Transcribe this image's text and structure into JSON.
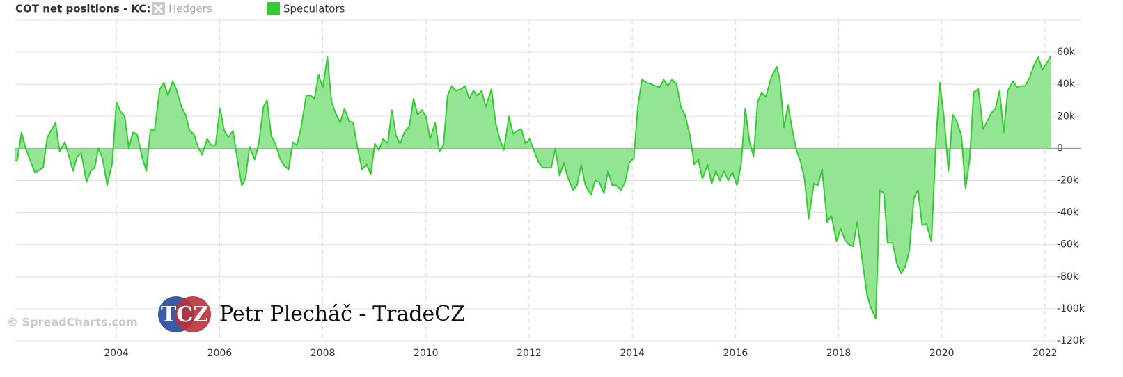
{
  "chart_data": {
    "type": "area",
    "title": "COT net positions - KC:",
    "legend": [
      {
        "name": "Hedgers",
        "color": "#bbbbbb",
        "visible": false
      },
      {
        "name": "Speculators",
        "color": "#33cc33",
        "visible": true
      }
    ],
    "watermarks": [
      "© SpreadCharts.com",
      "TCZ",
      "Petr Plecháč - TradeCZ"
    ],
    "x": [
      2002.04,
      2002.08,
      2002.16,
      2002.24,
      2002.42,
      2002.58,
      2002.66,
      2002.82,
      2002.9,
      2003.0,
      2003.16,
      2003.24,
      2003.32,
      2003.42,
      2003.5,
      2003.58,
      2003.65,
      2003.73,
      2003.82,
      2003.92,
      2004.0,
      2004.08,
      2004.16,
      2004.24,
      2004.32,
      2004.4,
      2004.5,
      2004.58,
      2004.66,
      2004.74,
      2004.84,
      2004.92,
      2005.0,
      2005.09,
      2005.16,
      2005.26,
      2005.34,
      2005.42,
      2005.5,
      2005.58,
      2005.66,
      2005.76,
      2005.84,
      2005.92,
      2006.01,
      2006.09,
      2006.17,
      2006.26,
      2006.35,
      2006.43,
      2006.5,
      2006.58,
      2006.68,
      2006.76,
      2006.85,
      2006.92,
      2007.0,
      2007.08,
      2007.18,
      2007.26,
      2007.34,
      2007.42,
      2007.5,
      2007.58,
      2007.68,
      2007.76,
      2007.84,
      2007.92,
      2008.0,
      2008.09,
      2008.17,
      2008.25,
      2008.34,
      2008.42,
      2008.51,
      2008.59,
      2008.67,
      2008.76,
      2008.85,
      2008.93,
      2009.01,
      2009.09,
      2009.17,
      2009.26,
      2009.34,
      2009.42,
      2009.5,
      2009.58,
      2009.68,
      2009.76,
      2009.84,
      2009.92,
      2010.0,
      2010.08,
      2010.18,
      2010.26,
      2010.34,
      2010.42,
      2010.5,
      2010.58,
      2010.68,
      2010.76,
      2010.84,
      2010.92,
      2011.0,
      2011.08,
      2011.16,
      2011.27,
      2011.35,
      2011.43,
      2011.51,
      2011.61,
      2011.69,
      2011.77,
      2011.85,
      2011.93,
      2012.01,
      2012.09,
      2012.19,
      2012.27,
      2012.35,
      2012.43,
      2012.51,
      2012.59,
      2012.67,
      2012.75,
      2012.85,
      2012.93,
      2013.01,
      2013.09,
      2013.2,
      2013.28,
      2013.36,
      2013.45,
      2013.53,
      2013.61,
      2013.69,
      2013.78,
      2013.86,
      2013.94,
      2014.03,
      2014.11,
      2014.19,
      2014.28,
      2014.37,
      2014.45,
      2014.53,
      2014.61,
      2014.69,
      2014.77,
      2014.86,
      2014.94,
      2015.02,
      2015.12,
      2015.2,
      2015.28,
      2015.36,
      2015.46,
      2015.54,
      2015.62,
      2015.7,
      2015.78,
      2015.86,
      2015.94,
      2016.03,
      2016.11,
      2016.19,
      2016.27,
      2016.35,
      2016.43,
      2016.51,
      2016.59,
      2016.69,
      2016.8,
      2016.86,
      2016.94,
      2017.02,
      2017.1,
      2017.18,
      2017.26,
      2017.34,
      2017.42,
      2017.52,
      2017.6,
      2017.68,
      2017.78,
      2017.86,
      2017.96,
      2018.04,
      2018.12,
      2018.2,
      2018.28,
      2018.36,
      2018.46,
      2018.55,
      2018.62,
      2018.72,
      2018.8,
      2018.88,
      2018.95,
      2019.05,
      2019.13,
      2019.21,
      2019.29,
      2019.37,
      2019.46,
      2019.54,
      2019.62,
      2019.7,
      2019.8,
      2019.88,
      2019.96,
      2020.04,
      2020.13,
      2020.21,
      2020.29,
      2020.38,
      2020.46,
      2020.54,
      2020.62,
      2020.71,
      2020.8,
      2020.88,
      2020.96,
      2021.04,
      2021.12,
      2021.2,
      2021.28,
      2021.38,
      2021.46,
      2021.54,
      2021.62,
      2021.7,
      2021.79,
      2021.87,
      2021.95,
      2022.03,
      2022.12
    ],
    "series": [
      {
        "name": "Speculators",
        "color": "#33cc33",
        "fill": "#93e593",
        "values": [
          -8000,
          -7000,
          10000,
          0,
          -15000,
          -12000,
          7000,
          16000,
          -2000,
          4000,
          -14000,
          -5000,
          -3000,
          -21000,
          -14000,
          -12000,
          0,
          -6000,
          -23000,
          -9000,
          29000,
          23000,
          20000,
          0,
          10000,
          9000,
          -6000,
          -14000,
          12000,
          11000,
          37000,
          41000,
          33000,
          42000,
          37000,
          26000,
          21000,
          11000,
          9000,
          1000,
          -4000,
          6000,
          2000,
          2000,
          25000,
          11000,
          7000,
          11000,
          -8000,
          -23000,
          -19000,
          1000,
          -7000,
          3000,
          26000,
          30000,
          8000,
          3000,
          -7000,
          -11000,
          -13000,
          4000,
          2000,
          13000,
          33000,
          33000,
          31000,
          46000,
          38000,
          57000,
          29000,
          22000,
          16000,
          25000,
          17000,
          16000,
          1000,
          -13000,
          -10000,
          -16000,
          3000,
          -1000,
          6000,
          3000,
          24000,
          8000,
          3000,
          10000,
          14000,
          31000,
          21000,
          24000,
          20000,
          6000,
          16000,
          -2000,
          2000,
          33000,
          39000,
          36000,
          37000,
          39000,
          31000,
          36000,
          33000,
          36000,
          26000,
          37000,
          16000,
          6000,
          -1000,
          20000,
          9000,
          11000,
          12000,
          3000,
          6000,
          -1000,
          -9000,
          -12000,
          -12000,
          -12000,
          0,
          -17000,
          -9000,
          -18000,
          -26000,
          -23000,
          -10000,
          -23000,
          -29000,
          -20000,
          -21000,
          -28000,
          -14000,
          -23000,
          -23000,
          -26000,
          -21000,
          -9000,
          -6000,
          27000,
          43000,
          41000,
          40000,
          39000,
          38000,
          43000,
          39000,
          43000,
          40000,
          26000,
          21000,
          8000,
          -10000,
          -7000,
          -19000,
          -10000,
          -22000,
          -14000,
          -20000,
          -14000,
          -20000,
          -15000,
          -23000,
          -10000,
          25000,
          5000,
          -5000,
          29000,
          35000,
          32000,
          44000,
          51000,
          43000,
          13000,
          27000,
          12000,
          -1000,
          -8000,
          -19000,
          -44000,
          -22000,
          -23000,
          -13000,
          -46000,
          -42000,
          -58000,
          -50000,
          -57000,
          -60000,
          -61000,
          -46000,
          -70000,
          -91000,
          -99000,
          -106000,
          -26000,
          -28000,
          -59000,
          -59000,
          -72000,
          -78000,
          -74000,
          -64000,
          -31000,
          -26000,
          -48000,
          -47000,
          -58000,
          0,
          41000,
          20000,
          -14000,
          21000,
          17000,
          8000,
          -25000,
          -7000,
          35000,
          37000,
          12000,
          17000,
          22000,
          25000,
          36000,
          10000,
          36000,
          42000,
          38000,
          39000,
          39000,
          44000,
          52000,
          57000,
          49000,
          53000,
          58000
        ]
      }
    ],
    "xlim": [
      2002.04,
      2022.15
    ],
    "xticks": [
      2004,
      2006,
      2008,
      2010,
      2012,
      2014,
      2016,
      2018,
      2020,
      2022
    ],
    "ylim": [
      -120000,
      80000
    ],
    "yticks": [
      {
        "value": -120000,
        "label": "-120k"
      },
      {
        "value": -100000,
        "label": "-100k"
      },
      {
        "value": -80000,
        "label": "-80k"
      },
      {
        "value": -60000,
        "label": "-60k"
      },
      {
        "value": -40000,
        "label": "-40k"
      },
      {
        "value": -20000,
        "label": "-20k"
      },
      0,
      {
        "value": 20000,
        "label": "20k"
      },
      {
        "value": 40000,
        "label": "40k"
      },
      {
        "value": 60000,
        "label": "60k"
      }
    ],
    "grid": true
  }
}
